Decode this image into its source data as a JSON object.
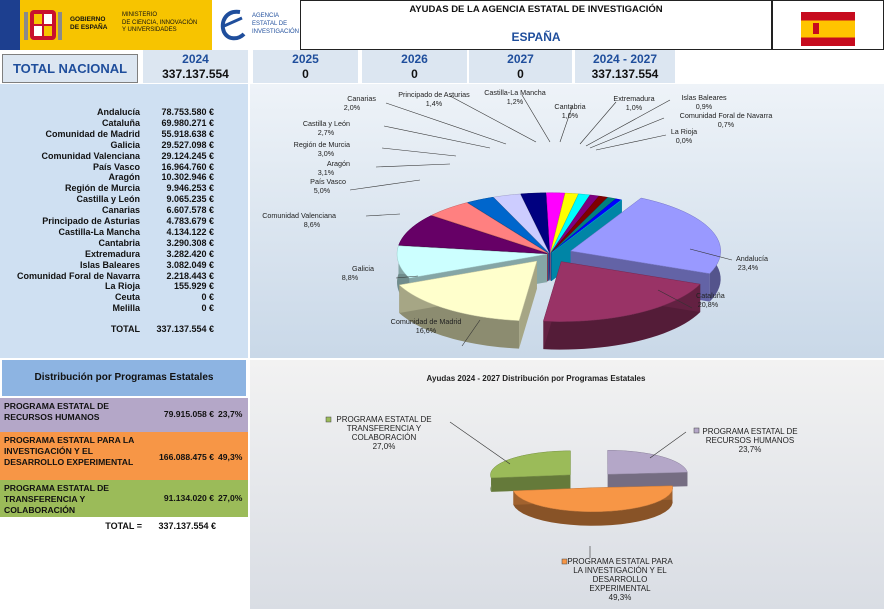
{
  "header": {
    "gov_lines": [
      "GOBIERNO",
      "DE ESPAÑA"
    ],
    "ministry_lines": [
      "MINISTERIO",
      "DE CIENCIA, INNOVACIÓN",
      "Y UNIVERSIDADES"
    ],
    "agency_lines": [
      "AGENCIA",
      "ESTATAL DE",
      "INVESTIGACIÓN"
    ],
    "title": "AYUDAS DE LA AGENCIA ESTATAL DE INVESTIGACIÓN",
    "subtitle": "ESPAÑA"
  },
  "totals_bar": {
    "label": "TOTAL NACIONAL",
    "years": [
      {
        "year": "2024",
        "value": "337.137.554"
      },
      {
        "year": "2025",
        "value": "0"
      },
      {
        "year": "2026",
        "value": "0"
      },
      {
        "year": "2027",
        "value": "0"
      },
      {
        "year": "2024 - 2027",
        "value": "337.137.554"
      }
    ]
  },
  "regions": {
    "total_label": "TOTAL",
    "total_value": "337.137.554 €"
  },
  "programs": {
    "title": "Distribución por Programas Estatales",
    "rows": [
      {
        "name": "PROGRAMA ESTATAL DE RECURSOS HUMANOS",
        "value": "79.915.058 €",
        "pct": "23,7%",
        "color": "#b4a7c8"
      },
      {
        "name": "PROGRAMA ESTATAL PARA LA INVESTIGACIÓN Y EL DESARROLLO EXPERIMENTAL",
        "value": "166.088.475 €",
        "pct": "49,3%",
        "color": "#f79646"
      },
      {
        "name": "PROGRAMA ESTATAL DE TRANSFERENCIA Y COLABORACIÓN",
        "value": "91.134.020 €",
        "pct": "27,0%",
        "color": "#9bbb59"
      }
    ],
    "total_label": "TOTAL =",
    "total_value": "337.137.554 €"
  },
  "chart_data": [
    {
      "type": "pie",
      "title": "",
      "categories": [
        "Andalucía",
        "Cataluña",
        "Comunidad de Madrid",
        "Galicia",
        "Comunidad Valenciana",
        "País Vasco",
        "Aragón",
        "Región de Murcia",
        "Castilla y León",
        "Canarias",
        "Principado de Asturias",
        "Castilla-La Mancha",
        "Cantabria",
        "Extremadura",
        "Islas Baleares",
        "Comunidad Foral de Navarra",
        "La Rioja",
        "Ceuta",
        "Melilla"
      ],
      "values": [
        78753580,
        69980271,
        55918638,
        29527098,
        29124245,
        16964760,
        10302946,
        9946253,
        9065235,
        6607578,
        4783679,
        4134122,
        3290308,
        3282420,
        3082049,
        2218443,
        155929,
        0,
        0
      ],
      "value_labels": [
        "78.753.580 €",
        "69.980.271 €",
        "55.918.638 €",
        "29.527.098 €",
        "29.124.245 €",
        "16.964.760 €",
        "10.302.946 €",
        "9.946.253 €",
        "9.065.235 €",
        "6.607.578 €",
        "4.783.679 €",
        "4.134.122 €",
        "3.290.308 €",
        "3.282.420 €",
        "3.082.049 €",
        "2.218.443 €",
        "155.929 €",
        "0 €",
        "0 €"
      ],
      "percent_labels": [
        "23,4%",
        "20,8%",
        "16,6%",
        "8,8%",
        "8,6%",
        "5,0%",
        "3,1%",
        "3,0%",
        "2,7%",
        "2,0%",
        "1,4%",
        "1,2%",
        "1,0%",
        "1,0%",
        "0,9%",
        "0,7%",
        "0,0%"
      ],
      "colors": [
        "#9999ff",
        "#993366",
        "#ffffcc",
        "#ccffff",
        "#660066",
        "#ff8080",
        "#0066cc",
        "#ccccff",
        "#000080",
        "#ff00ff",
        "#ffff00",
        "#00ffff",
        "#800080",
        "#800000",
        "#008080",
        "#0000ff",
        "#00ccff"
      ]
    },
    {
      "type": "pie",
      "title": "Ayudas 2024 - 2027  Distribución por Programas Estatales",
      "categories": [
        "PROGRAMA ESTATAL DE RECURSOS HUMANOS",
        "PROGRAMA ESTATAL PARA LA INVESTIGACIÓN Y EL DESARROLLO EXPERIMENTAL",
        "PROGRAMA ESTATAL DE TRANSFERENCIA Y COLABORACIÓN"
      ],
      "values": [
        79915058,
        166088475,
        91134020
      ],
      "percent_labels": [
        "23,7%",
        "49,3%",
        "27,0%"
      ],
      "colors": [
        "#b4a7c8",
        "#f79646",
        "#9bbb59"
      ]
    }
  ]
}
